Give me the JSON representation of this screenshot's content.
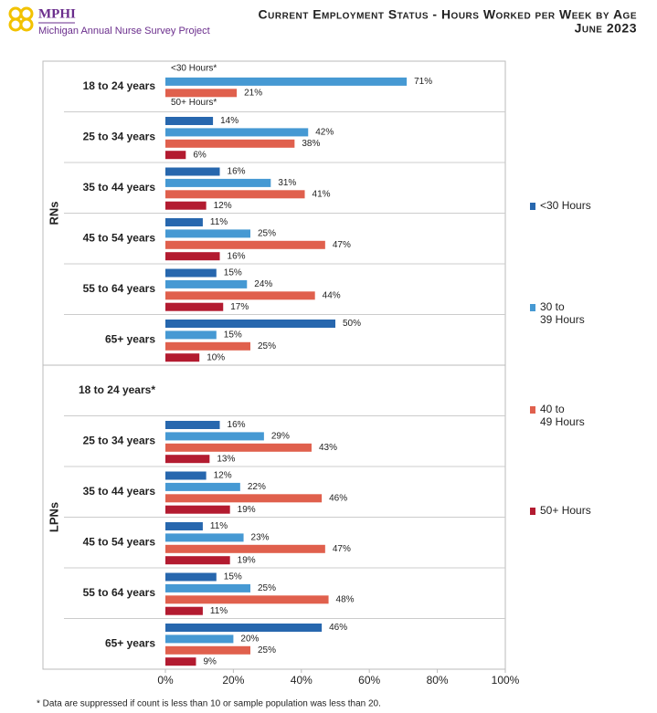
{
  "header": {
    "logo": "MPHI",
    "organization": "Michigan Annual Nurse Survey Project"
  },
  "chart_data": {
    "type": "grouped-hbar",
    "title": "Current Employment Status - Hours Worked per Week by Age",
    "subtitle": "June 2023",
    "groups": [
      {
        "name": "RNs",
        "categories": [
          "18 to 24 years",
          "25 to 34 years",
          "35 to 44 years",
          "45 to 54 years",
          "55 to 64 years",
          "65+ years"
        ]
      },
      {
        "name": "LPNs",
        "categories": [
          "18 to 24 years*",
          "25 to 34 years",
          "35 to 44 years",
          "45 to 54 years",
          "55 to 64 years",
          "65+ years"
        ]
      }
    ],
    "series": [
      {
        "name": "<30 Hours",
        "color": "#2767ae",
        "values": [
          null,
          14,
          16,
          11,
          15,
          50,
          null,
          16,
          12,
          11,
          15,
          46
        ],
        "value_labels": [
          null,
          "14%",
          "16%",
          "11%",
          "15%",
          "50%",
          null,
          "16%",
          "12%",
          "11%",
          "15%",
          "46%"
        ]
      },
      {
        "name": "30 to 39 Hours",
        "color": "#4699d3",
        "values": [
          71,
          42,
          31,
          25,
          24,
          15,
          null,
          29,
          22,
          23,
          25,
          20
        ],
        "value_labels": [
          "71%",
          "42%",
          "31%",
          "25%",
          "24%",
          "15%",
          null,
          "29%",
          "22%",
          "23%",
          "25%",
          "20%"
        ]
      },
      {
        "name": "40 to 49 Hours",
        "color": "#e0604d",
        "values": [
          21,
          38,
          41,
          47,
          44,
          25,
          null,
          43,
          46,
          47,
          48,
          25
        ],
        "value_labels": [
          "21%",
          "38%",
          "41%",
          "47%",
          "44%",
          "25%",
          null,
          "43%",
          "46%",
          "47%",
          "48%",
          "25%"
        ]
      },
      {
        "name": "50+ Hours",
        "color": "#b31b30",
        "values": [
          null,
          6,
          12,
          16,
          17,
          10,
          null,
          13,
          19,
          19,
          11,
          9
        ],
        "value_labels": [
          null,
          "6%",
          "12%",
          "16%",
          "17%",
          "10%",
          null,
          "13%",
          "19%",
          "19%",
          "11%",
          "9%"
        ]
      }
    ],
    "annotations": [
      "<30 Hours*",
      "50+ Hours*"
    ],
    "xlim": [
      0,
      100
    ],
    "xticks": [
      {
        "value": 0,
        "label": "0%"
      },
      {
        "value": 20,
        "label": "20%"
      },
      {
        "value": 40,
        "label": "40%"
      },
      {
        "value": 60,
        "label": "60%"
      },
      {
        "value": 80,
        "label": "80%"
      },
      {
        "value": 100,
        "label": "100%"
      }
    ],
    "footnote": "* Data are suppressed if count is less than 10 or sample population was less than 20."
  }
}
